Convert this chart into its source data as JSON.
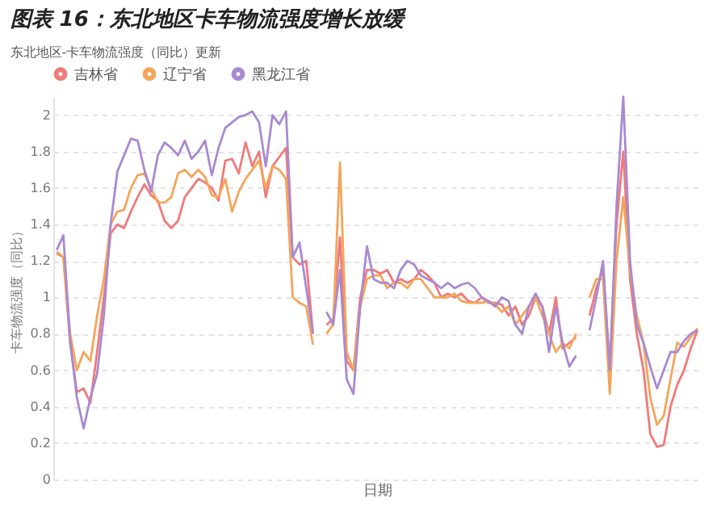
{
  "chart_data": {
    "type": "line",
    "title": "图表 16：东北地区卡车物流强度增长放缓",
    "subtitle": "东北地区-卡车物流强度（同比）更新",
    "xlabel": "日期",
    "ylabel": "卡车物流强度（同比）",
    "categories": [
      null,
      null,
      null,
      null,
      null,
      null,
      null,
      null,
      null,
      null,
      null,
      null,
      null,
      null,
      null,
      null,
      null,
      null,
      null,
      null,
      null,
      null,
      null,
      null,
      null,
      null,
      null,
      null,
      null,
      null,
      null,
      null,
      null,
      null,
      null,
      null,
      null,
      null,
      null,
      null,
      null,
      null,
      null,
      null,
      null,
      null,
      null,
      null,
      null,
      null,
      null,
      null,
      null,
      null,
      null,
      null,
      null,
      null,
      null,
      null,
      null,
      null,
      null,
      null,
      null,
      null,
      null,
      null,
      null,
      null,
      null,
      null,
      null,
      null,
      null,
      null,
      null,
      null,
      null,
      null,
      null,
      null,
      null,
      null,
      null,
      null,
      null,
      null,
      null,
      null,
      null,
      null,
      null,
      null,
      null,
      null
    ],
    "series": [
      {
        "name": "吉林省",
        "color": "#f07a7a",
        "values": [
          1.24,
          1.22,
          0.75,
          0.48,
          0.5,
          0.42,
          0.7,
          1.0,
          1.35,
          1.4,
          1.38,
          1.47,
          1.55,
          1.62,
          1.56,
          1.53,
          1.42,
          1.38,
          1.42,
          1.55,
          1.6,
          1.65,
          1.63,
          1.6,
          1.53,
          1.75,
          1.76,
          1.68,
          1.85,
          1.72,
          1.8,
          1.55,
          1.72,
          1.77,
          1.82,
          1.22,
          1.18,
          1.2,
          0.8,
          null,
          0.85,
          0.88,
          1.33,
          0.65,
          0.6,
          1.0,
          1.15,
          1.15,
          1.13,
          1.15,
          1.08,
          1.1,
          1.08,
          1.1,
          1.15,
          1.12,
          1.08,
          1.0,
          1.02,
          1.0,
          1.02,
          0.98,
          0.97,
          1.0,
          0.97,
          0.97,
          0.96,
          0.9,
          0.95,
          0.85,
          0.9,
          1.0,
          0.95,
          0.8,
          1.0,
          0.72,
          0.75,
          0.78,
          null,
          0.9,
          1.05,
          1.15,
          0.6,
          1.4,
          1.8,
          1.1,
          0.8,
          0.6,
          0.25,
          0.18,
          0.19,
          0.4,
          0.52,
          0.6,
          0.72,
          0.82
        ]
      },
      {
        "name": "辽宁省",
        "color": "#f5a55a",
        "values": [
          1.25,
          1.22,
          0.8,
          0.6,
          0.7,
          0.65,
          0.9,
          1.1,
          1.4,
          1.47,
          1.48,
          1.6,
          1.67,
          1.68,
          1.6,
          1.52,
          1.52,
          1.55,
          1.68,
          1.7,
          1.66,
          1.7,
          1.66,
          1.56,
          1.55,
          1.65,
          1.47,
          1.58,
          1.65,
          1.7,
          1.75,
          1.6,
          1.72,
          1.7,
          1.65,
          1.0,
          0.97,
          0.95,
          0.74,
          null,
          0.8,
          0.85,
          1.74,
          0.7,
          0.6,
          0.95,
          1.1,
          1.12,
          1.12,
          1.05,
          1.08,
          1.08,
          1.05,
          1.1,
          1.1,
          1.05,
          1.0,
          1.0,
          1.0,
          1.02,
          0.98,
          0.97,
          0.97,
          0.97,
          0.98,
          0.96,
          0.92,
          0.95,
          0.85,
          0.9,
          0.95,
          1.0,
          0.9,
          0.8,
          0.7,
          0.75,
          0.72,
          0.8,
          null,
          1.0,
          1.1,
          1.1,
          0.47,
          1.2,
          1.55,
          1.15,
          0.9,
          0.75,
          0.45,
          0.3,
          0.35,
          0.55,
          0.75,
          0.73,
          0.78,
          0.83
        ]
      },
      {
        "name": "黑龙江省",
        "color": "#a88ad0",
        "values": [
          1.26,
          1.34,
          0.76,
          0.45,
          0.28,
          0.45,
          0.58,
          0.9,
          1.4,
          1.69,
          1.78,
          1.87,
          1.86,
          1.7,
          1.58,
          1.78,
          1.85,
          1.82,
          1.78,
          1.86,
          1.76,
          1.8,
          1.86,
          1.67,
          1.82,
          1.93,
          1.96,
          1.99,
          2.0,
          2.02,
          1.96,
          1.72,
          2.0,
          1.95,
          2.02,
          1.22,
          1.3,
          1.05,
          0.8,
          null,
          0.92,
          0.85,
          1.15,
          0.55,
          0.47,
          0.95,
          1.28,
          1.1,
          1.08,
          1.08,
          1.05,
          1.15,
          1.2,
          1.18,
          1.12,
          1.1,
          1.08,
          1.05,
          1.08,
          1.05,
          1.07,
          1.08,
          1.05,
          1.0,
          0.98,
          0.95,
          1.0,
          0.98,
          0.85,
          0.8,
          0.95,
          1.02,
          0.95,
          0.7,
          0.95,
          0.75,
          0.62,
          0.68,
          null,
          0.82,
          1.0,
          1.2,
          0.6,
          1.5,
          2.1,
          1.2,
          0.85,
          0.75,
          0.62,
          0.5,
          0.6,
          0.7,
          0.7,
          0.76,
          0.8,
          0.82
        ]
      }
    ],
    "ylim": [
      0,
      2.1
    ],
    "yticks": [
      0,
      0.2,
      0.4,
      0.6,
      0.8,
      1,
      1.2,
      1.4,
      1.6,
      1.8,
      2
    ],
    "grid": "y",
    "legend": "top left",
    "tick_labels": "y",
    "line_style": "solid"
  }
}
